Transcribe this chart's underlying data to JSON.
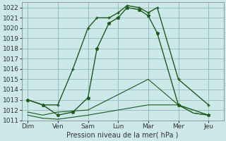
{
  "background_color": "#cce8e8",
  "grid_color": "#99bbbb",
  "line_color": "#1a5c1a",
  "xlabel": "Pression niveau de la mer( hPa )",
  "ylim": [
    1011,
    1022.5
  ],
  "yticks": [
    1011,
    1012,
    1013,
    1014,
    1015,
    1016,
    1017,
    1018,
    1019,
    1020,
    1021,
    1022
  ],
  "x_labels": [
    "Dim",
    "Ven",
    "Sam",
    "Lun",
    "Mar",
    "Mer",
    "Jeu"
  ],
  "x_positions": [
    0,
    1,
    2,
    3,
    4,
    5,
    6
  ],
  "line1_x": [
    0,
    0.5,
    1.0,
    1.5,
    2.0,
    2.3,
    2.7,
    3.0,
    3.3,
    3.7,
    4.0,
    4.3,
    5.0,
    6.0
  ],
  "line1_y": [
    1013.0,
    1012.5,
    1012.5,
    1016.0,
    1020.0,
    1021.0,
    1021.0,
    1021.5,
    1022.2,
    1022.0,
    1021.5,
    1022.0,
    1015.0,
    1012.5
  ],
  "line2_x": [
    0,
    0.5,
    1.0,
    1.5,
    2.0,
    2.3,
    2.7,
    3.0,
    3.3,
    3.7,
    4.0,
    4.3,
    5.0,
    6.0
  ],
  "line2_y": [
    1013.0,
    1012.5,
    1011.5,
    1011.8,
    1013.2,
    1018.0,
    1020.5,
    1021.0,
    1022.0,
    1021.8,
    1021.2,
    1019.5,
    1012.5,
    1011.5
  ],
  "line3_x": [
    0,
    0.5,
    1.0,
    2.0,
    3.0,
    4.0,
    5.0,
    5.5,
    6.0
  ],
  "line3_y": [
    1011.5,
    1011.2,
    1011.1,
    1011.5,
    1012.0,
    1012.5,
    1012.5,
    1011.7,
    1011.5
  ],
  "line4_x": [
    0,
    0.5,
    1.0,
    2.0,
    3.0,
    4.0,
    5.0,
    5.5,
    6.0
  ],
  "line4_y": [
    1011.8,
    1011.5,
    1011.8,
    1012.0,
    1013.5,
    1015.0,
    1012.5,
    1011.7,
    1011.5
  ]
}
